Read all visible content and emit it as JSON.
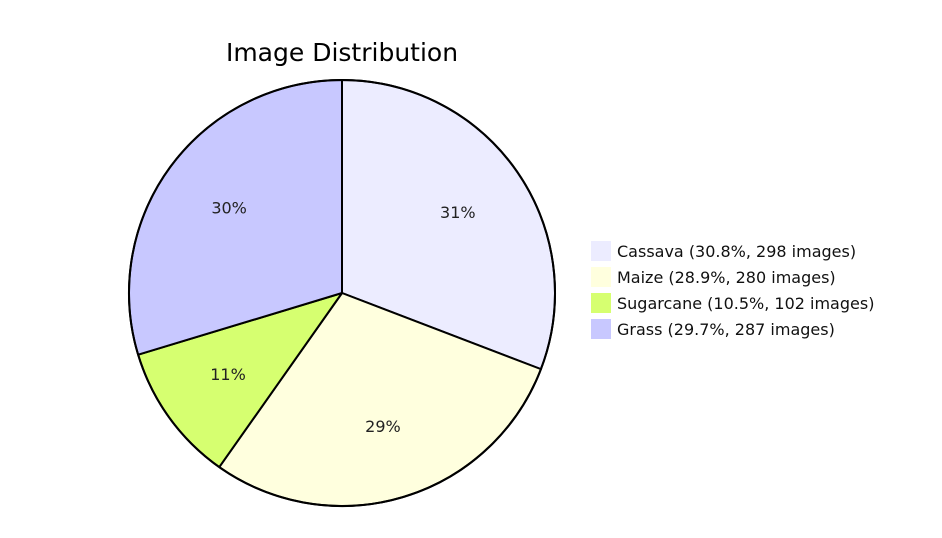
{
  "chart_data": {
    "type": "pie",
    "title": "Image Distribution",
    "categories": [
      "Cassava",
      "Maize",
      "Sugarcane",
      "Grass"
    ],
    "values": [
      298,
      280,
      102,
      287
    ],
    "percent_labels": [
      "31%",
      "29%",
      "11%",
      "30%"
    ],
    "legend_entries": [
      "Cassava (30.8%, 298 images)",
      "Maize (28.9%, 280 images)",
      "Sugarcane (10.5%, 102 images)",
      "Grass (29.7%, 287 images)"
    ],
    "colors": [
      "#ECECFF",
      "#FFFFDE",
      "#D6FF70",
      "#C8C8FF"
    ],
    "start_angle": "12 o'clock",
    "direction": "clockwise",
    "legend_position": "right"
  }
}
